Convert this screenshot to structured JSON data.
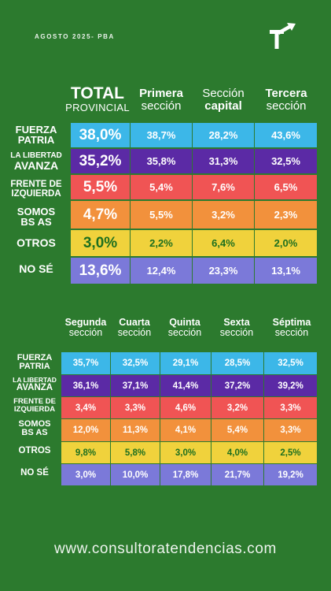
{
  "header": {
    "subtitle": "AGOSTO 2025- PBA",
    "logo_icon": "t-arrow-logo-icon"
  },
  "table1": {
    "columns": [
      {
        "l1": "TOTAL",
        "l2": "PROVINCIAL"
      },
      {
        "l1": "Primera",
        "l2": "sección"
      },
      {
        "l1": "Sección",
        "l2": "capital"
      },
      {
        "l1": "Tercera",
        "l2": "sección"
      }
    ],
    "rows": [
      {
        "label1": "FUERZA",
        "label2": "PATRIA",
        "values": [
          "38,0%",
          "38,7%",
          "28,2%",
          "43,6%"
        ]
      },
      {
        "label1": "LA LIBERTAD",
        "label2": "AVANZA",
        "values": [
          "35,2%",
          "35,8%",
          "31,3%",
          "32,5%"
        ]
      },
      {
        "label1": "FRENTE DE",
        "label2": "IZQUIERDA",
        "values": [
          "5,5%",
          "5,4%",
          "7,6%",
          "6,5%"
        ]
      },
      {
        "label1": "SOMOS",
        "label2": "BS AS",
        "values": [
          "4,7%",
          "5,5%",
          "3,2%",
          "2,3%"
        ]
      },
      {
        "label1": "OTROS",
        "label2": "",
        "values": [
          "3,0%",
          "2,2%",
          "6,4%",
          "2,0%"
        ]
      },
      {
        "label1": "NO SÉ",
        "label2": "",
        "values": [
          "13,6%",
          "12,4%",
          "23,3%",
          "13,1%"
        ]
      }
    ]
  },
  "table2": {
    "columns": [
      {
        "l1": "Segunda",
        "l2": "sección"
      },
      {
        "l1": "Cuarta",
        "l2": "sección"
      },
      {
        "l1": "Quinta",
        "l2": "sección"
      },
      {
        "l1": "Sexta",
        "l2": "sección"
      },
      {
        "l1": "Séptima",
        "l2": "sección"
      }
    ],
    "rows": [
      {
        "label1": "FUERZA",
        "label2": "PATRIA",
        "values": [
          "35,7%",
          "32,5%",
          "29,1%",
          "28,5%",
          "32,5%"
        ]
      },
      {
        "label1": "LA LIBERTAD",
        "label2": "AVANZA",
        "values": [
          "36,1%",
          "37,1%",
          "41,4%",
          "37,2%",
          "39,2%"
        ]
      },
      {
        "label1": "FRENTE DE",
        "label2": "IZQUIERDA",
        "values": [
          "3,4%",
          "3,3%",
          "4,6%",
          "3,2%",
          "3,3%"
        ]
      },
      {
        "label1": "SOMOS",
        "label2": "BS AS",
        "values": [
          "12,0%",
          "11,3%",
          "4,1%",
          "5,4%",
          "3,3%"
        ]
      },
      {
        "label1": "OTROS",
        "label2": "",
        "values": [
          "9,8%",
          "5,8%",
          "3,0%",
          "4,0%",
          "2,5%"
        ]
      },
      {
        "label1": "NO SÉ",
        "label2": "",
        "values": [
          "3,0%",
          "10,0%",
          "17,8%",
          "21,7%",
          "19,2%"
        ]
      }
    ]
  },
  "footer": {
    "url": "www.consultoratendencias.com"
  },
  "colors": {
    "background": "#2c7a2e",
    "fuerza_patria": "#3cb7e8",
    "la_libertad_avanza": "#5b2aa5",
    "frente_izquierda": "#f05454",
    "somos_bs_as": "#f2913c",
    "otros": "#f0d23c",
    "no_se": "#7b79d9"
  }
}
